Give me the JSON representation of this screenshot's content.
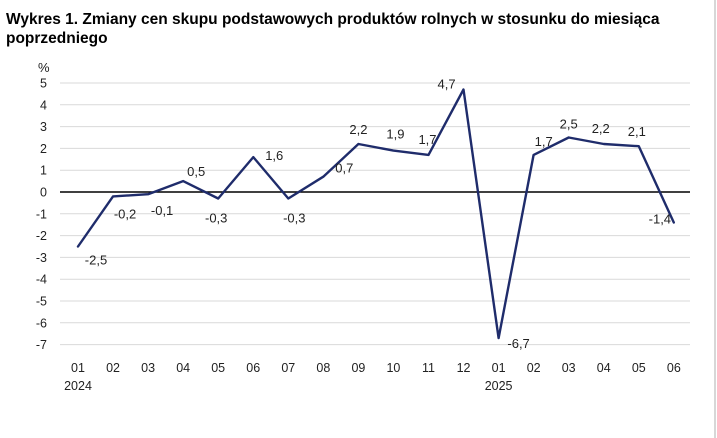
{
  "title": "Wykres 1. Zmiany cen skupu podstawowych produktów rolnych w stosunku do miesiąca poprzedniego",
  "chart_data": {
    "type": "line",
    "title": "Wykres 1. Zmiany cen skupu podstawowych produktów rolnych w stosunku do miesiąca poprzedniego",
    "unit_label": "%",
    "categories": [
      "01",
      "02",
      "03",
      "04",
      "05",
      "06",
      "07",
      "08",
      "09",
      "10",
      "11",
      "12",
      "01",
      "02",
      "03",
      "04",
      "05",
      "06"
    ],
    "year_labels": [
      {
        "index": 0,
        "label": "2024"
      },
      {
        "index": 12,
        "label": "2025"
      }
    ],
    "y_ticks": [
      "5",
      "4",
      "3",
      "2",
      "1",
      "0",
      "-1",
      "-2",
      "-3",
      "-4",
      "-5",
      "-6",
      "-7"
    ],
    "ylim": [
      -7,
      5
    ],
    "grid": true,
    "series": [
      {
        "values": [
          -2.5,
          -0.2,
          -0.1,
          0.5,
          -0.3,
          1.6,
          -0.3,
          0.7,
          2.2,
          1.9,
          1.7,
          4.7,
          -6.7,
          1.7,
          2.5,
          2.2,
          2.1,
          -1.4
        ],
        "labels": [
          "-2,5",
          "-0,2",
          "-0,1",
          "0,5",
          "-0,3",
          "1,6",
          "-0,3",
          "0,7",
          "2,2",
          "1,9",
          "1,7",
          "4,7",
          "-6,7",
          "1,7",
          "2,5",
          "2,2",
          "2,1",
          "-1,4"
        ]
      }
    ],
    "colors": {
      "line": "#1f2c6b",
      "grid": "#d9d9d9",
      "zero_line": "#000000"
    }
  }
}
